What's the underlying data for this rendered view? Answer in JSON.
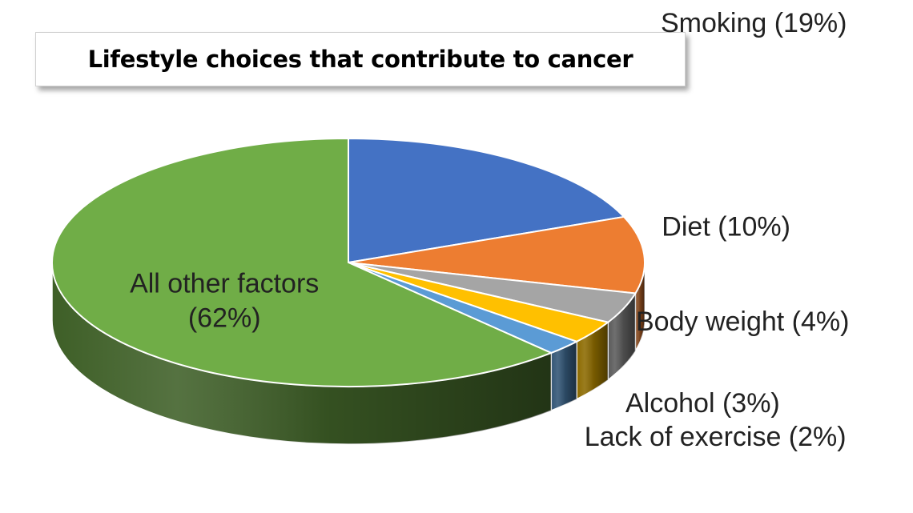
{
  "chart_data": {
    "type": "pie",
    "title": "Lifestyle choices that contribute to cancer",
    "categories": [
      "Smoking",
      "Diet",
      "Body weight",
      "Alcohol",
      "Lack of exercise",
      "All other factors"
    ],
    "values": [
      19,
      10,
      4,
      3,
      2,
      62
    ],
    "unit": "%",
    "labels": [
      [
        "Smoking (19%)"
      ],
      [
        "Diet (10%)"
      ],
      [
        "Body weight (4%)"
      ],
      [
        "Alcohol (3%)"
      ],
      [
        "Lack of exercise (2%)"
      ],
      [
        "All other factors",
        "(62%)"
      ]
    ],
    "colors": [
      "#4472C4",
      "#ED7D31",
      "#A5A5A5",
      "#FFC000",
      "#5B9BD5",
      "#70AD47"
    ],
    "style": "3d",
    "legend": "none"
  }
}
